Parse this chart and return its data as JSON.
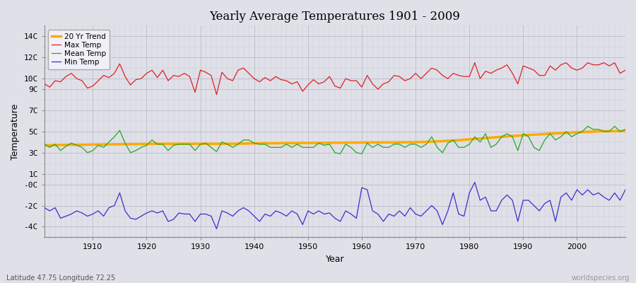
{
  "title": "Yearly Average Temperatures 1901 - 2009",
  "xlabel": "Year",
  "ylabel": "Temperature",
  "subtitle_left": "Latitude 47.75 Longitude 72.25",
  "subtitle_right": "worldspecies.org",
  "bg_color": "#e0e0e8",
  "plot_bg_color": "#e0e0e8",
  "years": [
    1901,
    1902,
    1903,
    1904,
    1905,
    1906,
    1907,
    1908,
    1909,
    1910,
    1911,
    1912,
    1913,
    1914,
    1915,
    1916,
    1917,
    1918,
    1919,
    1920,
    1921,
    1922,
    1923,
    1924,
    1925,
    1926,
    1927,
    1928,
    1929,
    1930,
    1931,
    1932,
    1933,
    1934,
    1935,
    1936,
    1937,
    1938,
    1939,
    1940,
    1941,
    1942,
    1943,
    1944,
    1945,
    1946,
    1947,
    1948,
    1949,
    1950,
    1951,
    1952,
    1953,
    1954,
    1955,
    1956,
    1957,
    1958,
    1959,
    1960,
    1961,
    1962,
    1963,
    1964,
    1965,
    1966,
    1967,
    1968,
    1969,
    1970,
    1971,
    1972,
    1973,
    1974,
    1975,
    1976,
    1977,
    1978,
    1979,
    1980,
    1981,
    1982,
    1983,
    1984,
    1985,
    1986,
    1987,
    1988,
    1989,
    1990,
    1991,
    1992,
    1993,
    1994,
    1995,
    1996,
    1997,
    1998,
    1999,
    2000,
    2001,
    2002,
    2003,
    2004,
    2005,
    2006,
    2007,
    2008,
    2009
  ],
  "max_temp": [
    9.5,
    9.2,
    9.8,
    9.7,
    10.2,
    10.5,
    10.0,
    9.8,
    9.1,
    9.3,
    9.8,
    10.3,
    10.1,
    10.5,
    11.4,
    10.2,
    9.4,
    9.9,
    10.0,
    10.5,
    10.8,
    10.1,
    10.8,
    9.8,
    10.3,
    10.2,
    10.5,
    10.2,
    8.7,
    10.8,
    10.6,
    10.3,
    8.5,
    10.6,
    10.0,
    9.8,
    10.8,
    11.0,
    10.5,
    10.0,
    9.7,
    10.1,
    9.8,
    10.2,
    9.9,
    9.8,
    9.5,
    9.7,
    8.8,
    9.4,
    9.9,
    9.5,
    9.7,
    10.2,
    9.3,
    9.1,
    10.0,
    9.8,
    9.8,
    9.2,
    10.3,
    9.5,
    9.0,
    9.5,
    9.7,
    10.3,
    10.2,
    9.8,
    10.0,
    10.5,
    10.0,
    10.5,
    11.0,
    10.8,
    10.3,
    10.0,
    10.5,
    10.3,
    10.2,
    10.2,
    11.5,
    10.0,
    10.7,
    10.5,
    10.8,
    11.0,
    11.3,
    10.5,
    9.5,
    11.2,
    11.0,
    10.8,
    10.3,
    10.3,
    11.2,
    10.8,
    11.3,
    11.5,
    11.0,
    10.8,
    11.0,
    11.5,
    11.3,
    11.3,
    11.5,
    11.2,
    11.5,
    10.5,
    10.8
  ],
  "mean_temp": [
    3.8,
    3.5,
    3.8,
    3.2,
    3.6,
    3.9,
    3.7,
    3.5,
    3.0,
    3.2,
    3.7,
    3.5,
    4.0,
    4.5,
    5.1,
    3.9,
    3.0,
    3.2,
    3.5,
    3.7,
    4.2,
    3.8,
    3.8,
    3.2,
    3.7,
    3.8,
    3.8,
    3.8,
    3.2,
    3.8,
    3.9,
    3.5,
    3.1,
    4.0,
    3.8,
    3.5,
    3.8,
    4.2,
    4.2,
    3.9,
    3.8,
    3.8,
    3.5,
    3.5,
    3.5,
    3.8,
    3.5,
    3.8,
    3.5,
    3.5,
    3.5,
    3.9,
    3.7,
    3.8,
    3.0,
    2.9,
    3.8,
    3.5,
    3.0,
    2.9,
    3.9,
    3.5,
    3.8,
    3.5,
    3.5,
    3.8,
    3.8,
    3.5,
    3.8,
    3.8,
    3.5,
    3.8,
    4.5,
    3.5,
    3.0,
    3.9,
    4.2,
    3.5,
    3.5,
    3.8,
    4.5,
    4.0,
    4.8,
    3.5,
    3.8,
    4.5,
    4.8,
    4.5,
    3.2,
    4.8,
    4.5,
    3.5,
    3.2,
    4.2,
    4.8,
    4.2,
    4.5,
    5.0,
    4.5,
    4.8,
    5.0,
    5.5,
    5.2,
    5.2,
    5.0,
    5.0,
    5.5,
    5.0,
    5.2
  ],
  "min_temp": [
    -2.2,
    -2.5,
    -2.2,
    -3.2,
    -3.0,
    -2.8,
    -2.5,
    -2.7,
    -3.0,
    -2.8,
    -2.5,
    -3.0,
    -2.2,
    -2.0,
    -0.8,
    -2.5,
    -3.2,
    -3.3,
    -3.0,
    -2.7,
    -2.5,
    -2.7,
    -2.5,
    -3.5,
    -3.3,
    -2.7,
    -2.8,
    -2.8,
    -3.5,
    -2.8,
    -2.8,
    -3.0,
    -4.2,
    -2.5,
    -2.7,
    -3.0,
    -2.5,
    -2.2,
    -2.5,
    -3.0,
    -3.5,
    -2.8,
    -3.0,
    -2.5,
    -2.7,
    -3.0,
    -2.5,
    -2.8,
    -3.8,
    -2.5,
    -2.8,
    -2.5,
    -2.8,
    -2.7,
    -3.2,
    -3.5,
    -2.5,
    -2.8,
    -3.2,
    -0.3,
    -0.5,
    -2.5,
    -2.8,
    -3.5,
    -2.8,
    -3.0,
    -2.5,
    -3.0,
    -2.2,
    -2.8,
    -3.0,
    -2.5,
    -2.0,
    -2.5,
    -3.8,
    -2.5,
    -0.8,
    -2.8,
    -3.0,
    -0.8,
    0.2,
    -1.5,
    -1.2,
    -2.5,
    -2.5,
    -1.5,
    -1.0,
    -1.5,
    -3.5,
    -1.5,
    -1.5,
    -2.0,
    -2.5,
    -1.8,
    -1.5,
    -3.5,
    -1.2,
    -0.8,
    -1.5,
    -0.5,
    -1.0,
    -0.5,
    -1.0,
    -0.8,
    -1.2,
    -1.5,
    -0.8,
    -1.5,
    -0.5
  ],
  "trend": [
    3.7,
    3.7,
    3.72,
    3.73,
    3.74,
    3.75,
    3.75,
    3.75,
    3.76,
    3.77,
    3.77,
    3.78,
    3.78,
    3.79,
    3.8,
    3.8,
    3.81,
    3.81,
    3.82,
    3.83,
    3.84,
    3.84,
    3.84,
    3.84,
    3.84,
    3.84,
    3.84,
    3.84,
    3.84,
    3.84,
    3.84,
    3.84,
    3.84,
    3.84,
    3.84,
    3.84,
    3.85,
    3.86,
    3.87,
    3.88,
    3.88,
    3.89,
    3.89,
    3.89,
    3.9,
    3.91,
    3.91,
    3.91,
    3.92,
    3.92,
    3.92,
    3.93,
    3.93,
    3.94,
    3.94,
    3.94,
    3.95,
    3.95,
    3.95,
    3.96,
    3.97,
    3.97,
    3.97,
    3.97,
    3.97,
    3.97,
    3.98,
    3.98,
    3.99,
    4.0,
    4.01,
    4.02,
    4.04,
    4.07,
    4.09,
    4.12,
    4.15,
    4.18,
    4.22,
    4.26,
    4.3,
    4.34,
    4.38,
    4.42,
    4.46,
    4.5,
    4.54,
    4.58,
    4.6,
    4.65,
    4.68,
    4.7,
    4.73,
    4.76,
    4.8,
    4.82,
    4.85,
    4.88,
    4.9,
    4.93,
    4.95,
    4.97,
    4.99,
    5.01,
    5.03,
    5.03,
    5.03,
    5.03,
    5.03
  ],
  "yticks": [
    -4,
    -2,
    0,
    1,
    3,
    5,
    7,
    9,
    10,
    12,
    14
  ],
  "ytick_labels": [
    "-4C",
    "-2C",
    "-0C",
    "1C",
    "3C",
    "5C",
    "7C",
    "9C",
    "10C",
    "12C",
    "14C"
  ],
  "ylim": [
    -5,
    15
  ],
  "xlim": [
    1901,
    2009
  ],
  "xticks": [
    1910,
    1920,
    1930,
    1940,
    1950,
    1960,
    1970,
    1980,
    1990,
    2000
  ],
  "max_color": "#dd2222",
  "mean_color": "#22aa22",
  "min_color": "#3333cc",
  "trend_color": "#ffaa00",
  "grid_major_color": "#bbbbcc",
  "grid_minor_color": "#ccccdd",
  "legend_labels": [
    "Max Temp",
    "Mean Temp",
    "Min Temp",
    "20 Yr Trend"
  ],
  "figsize": [
    9.0,
    4.0
  ],
  "dpi": 100
}
